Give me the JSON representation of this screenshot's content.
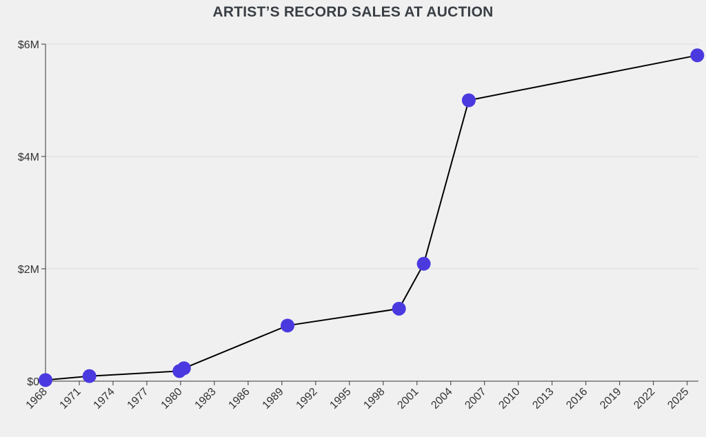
{
  "chart_data": {
    "type": "line",
    "title": "ARTIST’S RECORD SALES AT AUCTION",
    "xlabel": "",
    "ylabel": "",
    "x_unit": "year",
    "xlim": [
      1968,
      2026
    ],
    "ylim": [
      0,
      6000000
    ],
    "x_ticks": [
      1968,
      1971,
      1974,
      1977,
      1980,
      1983,
      1986,
      1989,
      1992,
      1995,
      1998,
      2001,
      2004,
      2007,
      2010,
      2013,
      2016,
      2019,
      2022,
      2025
    ],
    "y_ticks": [
      {
        "value": 0,
        "label": "$0"
      },
      {
        "value": 2000000,
        "label": "$2M"
      },
      {
        "value": 4000000,
        "label": "$4M"
      },
      {
        "value": 6000000,
        "label": "$6M"
      }
    ],
    "grid": "horizontal",
    "legend": "none",
    "series": [
      {
        "color": "#4b39e0",
        "line_color": "#000000",
        "points": [
          {
            "x": 1968.0,
            "y": 20000
          },
          {
            "x": 1971.9,
            "y": 90000
          },
          {
            "x": 1979.9,
            "y": 180000
          },
          {
            "x": 1980.3,
            "y": 230000
          },
          {
            "x": 1989.5,
            "y": 990000
          },
          {
            "x": 1999.4,
            "y": 1290000
          },
          {
            "x": 2001.6,
            "y": 2090000
          },
          {
            "x": 2005.6,
            "y": 5000000
          },
          {
            "x": 2025.9,
            "y": 5800000
          }
        ]
      }
    ]
  }
}
